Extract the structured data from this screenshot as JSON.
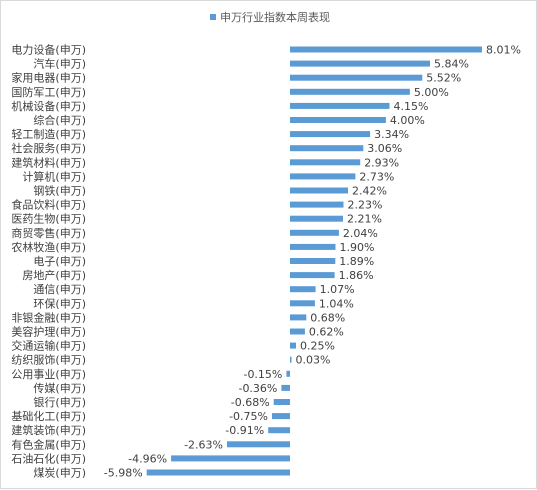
{
  "chart_data": {
    "type": "bar",
    "orientation": "horizontal",
    "title": "",
    "xlabel": "",
    "ylabel": "",
    "legend": {
      "position": "top",
      "entries": [
        "申万行业指数本周表现"
      ]
    },
    "series": [
      {
        "name": "申万行业指数本周表现",
        "color": "#5b9bd5",
        "unit": "%",
        "values": [
          8.01,
          5.84,
          5.52,
          5.0,
          4.15,
          4.0,
          3.34,
          3.06,
          2.93,
          2.73,
          2.42,
          2.23,
          2.21,
          2.04,
          1.9,
          1.89,
          1.86,
          1.07,
          1.04,
          0.68,
          0.62,
          0.25,
          0.03,
          -0.15,
          -0.36,
          -0.68,
          -0.75,
          -0.91,
          -2.63,
          -4.96,
          -5.98
        ]
      }
    ],
    "categories": [
      "电力设备(申万)",
      "汽车(申万)",
      "家用电器(申万)",
      "国防军工(申万)",
      "机械设备(申万)",
      "综合(申万)",
      "轻工制造(申万)",
      "社会服务(申万)",
      "建筑材料(申万)",
      "计算机(申万)",
      "钢铁(申万)",
      "食品饮料(申万)",
      "医药生物(申万)",
      "商贸零售(申万)",
      "农林牧渔(申万)",
      "电子(申万)",
      "房地产(申万)",
      "通信(申万)",
      "环保(申万)",
      "非银金融(申万)",
      "美容护理(申万)",
      "交通运输(申万)",
      "纺织服饰(申万)",
      "公用事业(申万)",
      "传媒(申万)",
      "银行(申万)",
      "基础化工(申万)",
      "建筑装饰(申万)",
      "有色金属(申万)",
      "石油石化(申万)",
      "煤炭(申万)"
    ],
    "data_labels": [
      "8.01%",
      "5.84%",
      "5.52%",
      "5.00%",
      "4.15%",
      "4.00%",
      "3.34%",
      "3.06%",
      "2.93%",
      "2.73%",
      "2.42%",
      "2.23%",
      "2.21%",
      "2.04%",
      "1.90%",
      "1.89%",
      "1.86%",
      "1.07%",
      "1.04%",
      "0.68%",
      "0.62%",
      "0.25%",
      "0.03%",
      "-0.15%",
      "-0.36%",
      "-0.68%",
      "-0.75%",
      "-0.91%",
      "-2.63%",
      "-4.96%",
      "-5.98%"
    ],
    "xlim": [
      -8,
      8
    ],
    "grid": false,
    "axis_visible": false
  }
}
